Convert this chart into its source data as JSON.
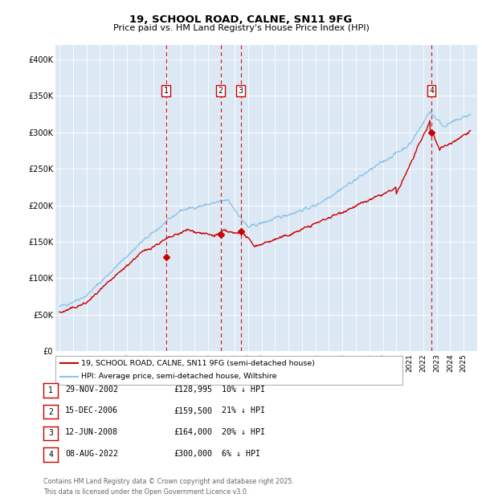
{
  "title": "19, SCHOOL ROAD, CALNE, SN11 9FG",
  "subtitle": "Price paid vs. HM Land Registry's House Price Index (HPI)",
  "background_color": "#dce9f5",
  "plot_bg_color": "#dce9f5",
  "hpi_color": "#8ec4e8",
  "price_color": "#cc0000",
  "ylim": [
    0,
    420000
  ],
  "yticks": [
    0,
    50000,
    100000,
    150000,
    200000,
    250000,
    300000,
    350000,
    400000
  ],
  "ytick_labels": [
    "£0",
    "£50K",
    "£100K",
    "£150K",
    "£200K",
    "£250K",
    "£300K",
    "£350K",
    "£400K"
  ],
  "transactions": [
    {
      "label": "1",
      "date": "29-NOV-2002",
      "year_float": 2002.91,
      "price": 128995,
      "hpi_pct": "10% ↓ HPI"
    },
    {
      "label": "2",
      "date": "15-DEC-2006",
      "year_float": 2006.96,
      "price": 159500,
      "hpi_pct": "21% ↓ HPI"
    },
    {
      "label": "3",
      "date": "12-JUN-2008",
      "year_float": 2008.45,
      "price": 164000,
      "hpi_pct": "20% ↓ HPI"
    },
    {
      "label": "4",
      "date": "08-AUG-2022",
      "year_float": 2022.6,
      "price": 300000,
      "hpi_pct": "6% ↓ HPI"
    }
  ],
  "legend_entries": [
    "19, SCHOOL ROAD, CALNE, SN11 9FG (semi-detached house)",
    "HPI: Average price, semi-detached house, Wiltshire"
  ],
  "footer": "Contains HM Land Registry data © Crown copyright and database right 2025.\nThis data is licensed under the Open Government Licence v3.0."
}
